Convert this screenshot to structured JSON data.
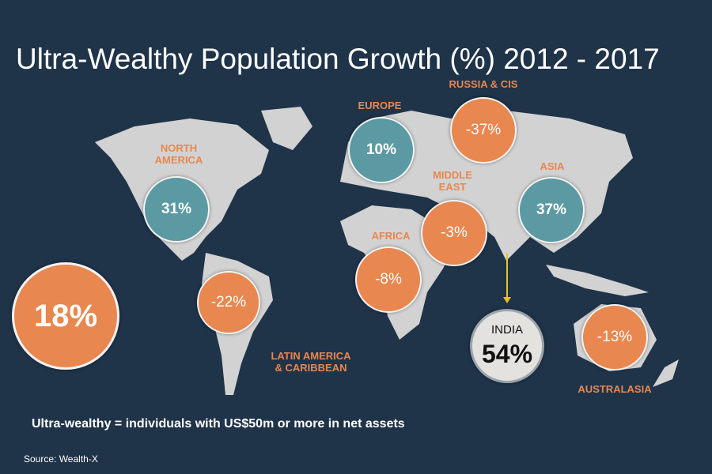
{
  "title": "Ultra-Wealthy Population Growth (%) 2012 - 2017",
  "global": {
    "value": "18%",
    "color": "#e8874f"
  },
  "regions": {
    "north_america": {
      "label": "NORTH\nAMERICA",
      "value": "31%",
      "color": "#5b9aa3"
    },
    "europe": {
      "label": "EUROPE",
      "value": "10%",
      "color": "#5b9aa3"
    },
    "russia": {
      "label": "RUSSIA & CIS",
      "value": "-37%",
      "color": "#e8874f"
    },
    "middle_east": {
      "label": "MIDDLE\nEAST",
      "value": "-3%",
      "color": "#e8874f"
    },
    "asia": {
      "label": "ASIA",
      "value": "37%",
      "color": "#5b9aa3"
    },
    "africa": {
      "label": "AFRICA",
      "value": "-8%",
      "color": "#e8874f"
    },
    "latin_america": {
      "label": "LATIN AMERICA\n& CARIBBEAN",
      "value": "-22%",
      "color": "#e8874f"
    },
    "india": {
      "label": "INDIA",
      "value": "54%"
    },
    "australasia": {
      "label": "AUSTRALASIA",
      "value": "-13%",
      "color": "#e8874f"
    }
  },
  "footnote": "Ultra-wealthy = individuals with US$50m or more in net assets",
  "source": "Source: Wealth-X"
}
